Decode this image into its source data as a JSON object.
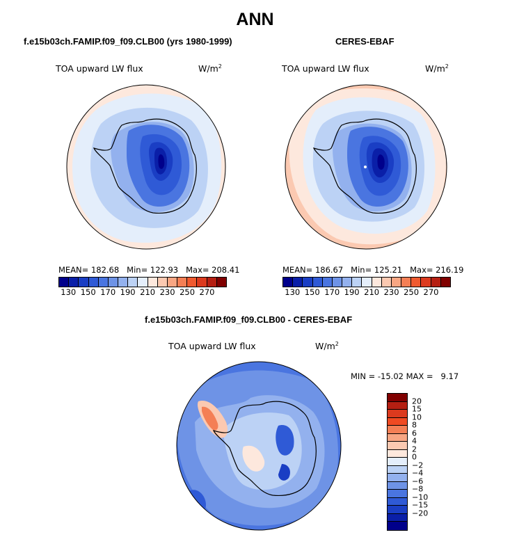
{
  "title": "ANN",
  "panels": [
    {
      "title": "f.e15b03ch.FAMIP.f09_f09.CLB00 (yrs 1980-1999)",
      "variable": "TOA upward LW flux",
      "units": "W/m",
      "units_sup": "2",
      "stats": {
        "mean_label": "MEAN=",
        "mean": "182.68",
        "min_label": "Min=",
        "min": "122.93",
        "max_label": "Max=",
        "max": "208.41"
      }
    },
    {
      "title": "CERES-EBAF",
      "variable": "TOA upward LW flux",
      "units": "W/m",
      "units_sup": "2",
      "stats": {
        "mean_label": "MEAN=",
        "mean": "186.67",
        "min_label": "Min=",
        "min": "125.21",
        "max_label": "Max=",
        "max": "216.19"
      }
    },
    {
      "title": "f.e15b03ch.FAMIP.f09_f09.CLB00 - CERES-EBAF",
      "variable": "TOA upward LW flux",
      "units": "W/m",
      "units_sup": "2",
      "stats": {
        "min_label": "MIN =",
        "min": "-15.02",
        "max_label": "MAX =",
        "max": "9.17"
      }
    }
  ],
  "colorbar_abs": {
    "colors": [
      "#00008b",
      "#0a1fa8",
      "#1a3ec4",
      "#2f5ad6",
      "#4a75e0",
      "#6e93e6",
      "#93b1ee",
      "#bcd2f5",
      "#e4eefb",
      "#fde8dd",
      "#fbc9b1",
      "#f8a683",
      "#f47f55",
      "#ef5a30",
      "#dc3a1e",
      "#b51f12",
      "#800000"
    ],
    "labels": [
      "130",
      "150",
      "170",
      "190",
      "210",
      "230",
      "250",
      "270"
    ]
  },
  "colorbar_diff": {
    "colors": [
      "#800000",
      "#b51f12",
      "#dc3a1e",
      "#f04a22",
      "#f47f55",
      "#f8a683",
      "#fbc9b1",
      "#fde8dd",
      "#e4eefb",
      "#bcd2f5",
      "#93b1ee",
      "#6e93e6",
      "#4a75e0",
      "#2f5ad6",
      "#1a3ec4",
      "#0a1fa8",
      "#00008b"
    ],
    "labels": [
      "20",
      "15",
      "10",
      "8",
      "6",
      "4",
      "2",
      "0",
      "−2",
      "−4",
      "−6",
      "−8",
      "−10",
      "−15",
      "−20"
    ]
  }
}
